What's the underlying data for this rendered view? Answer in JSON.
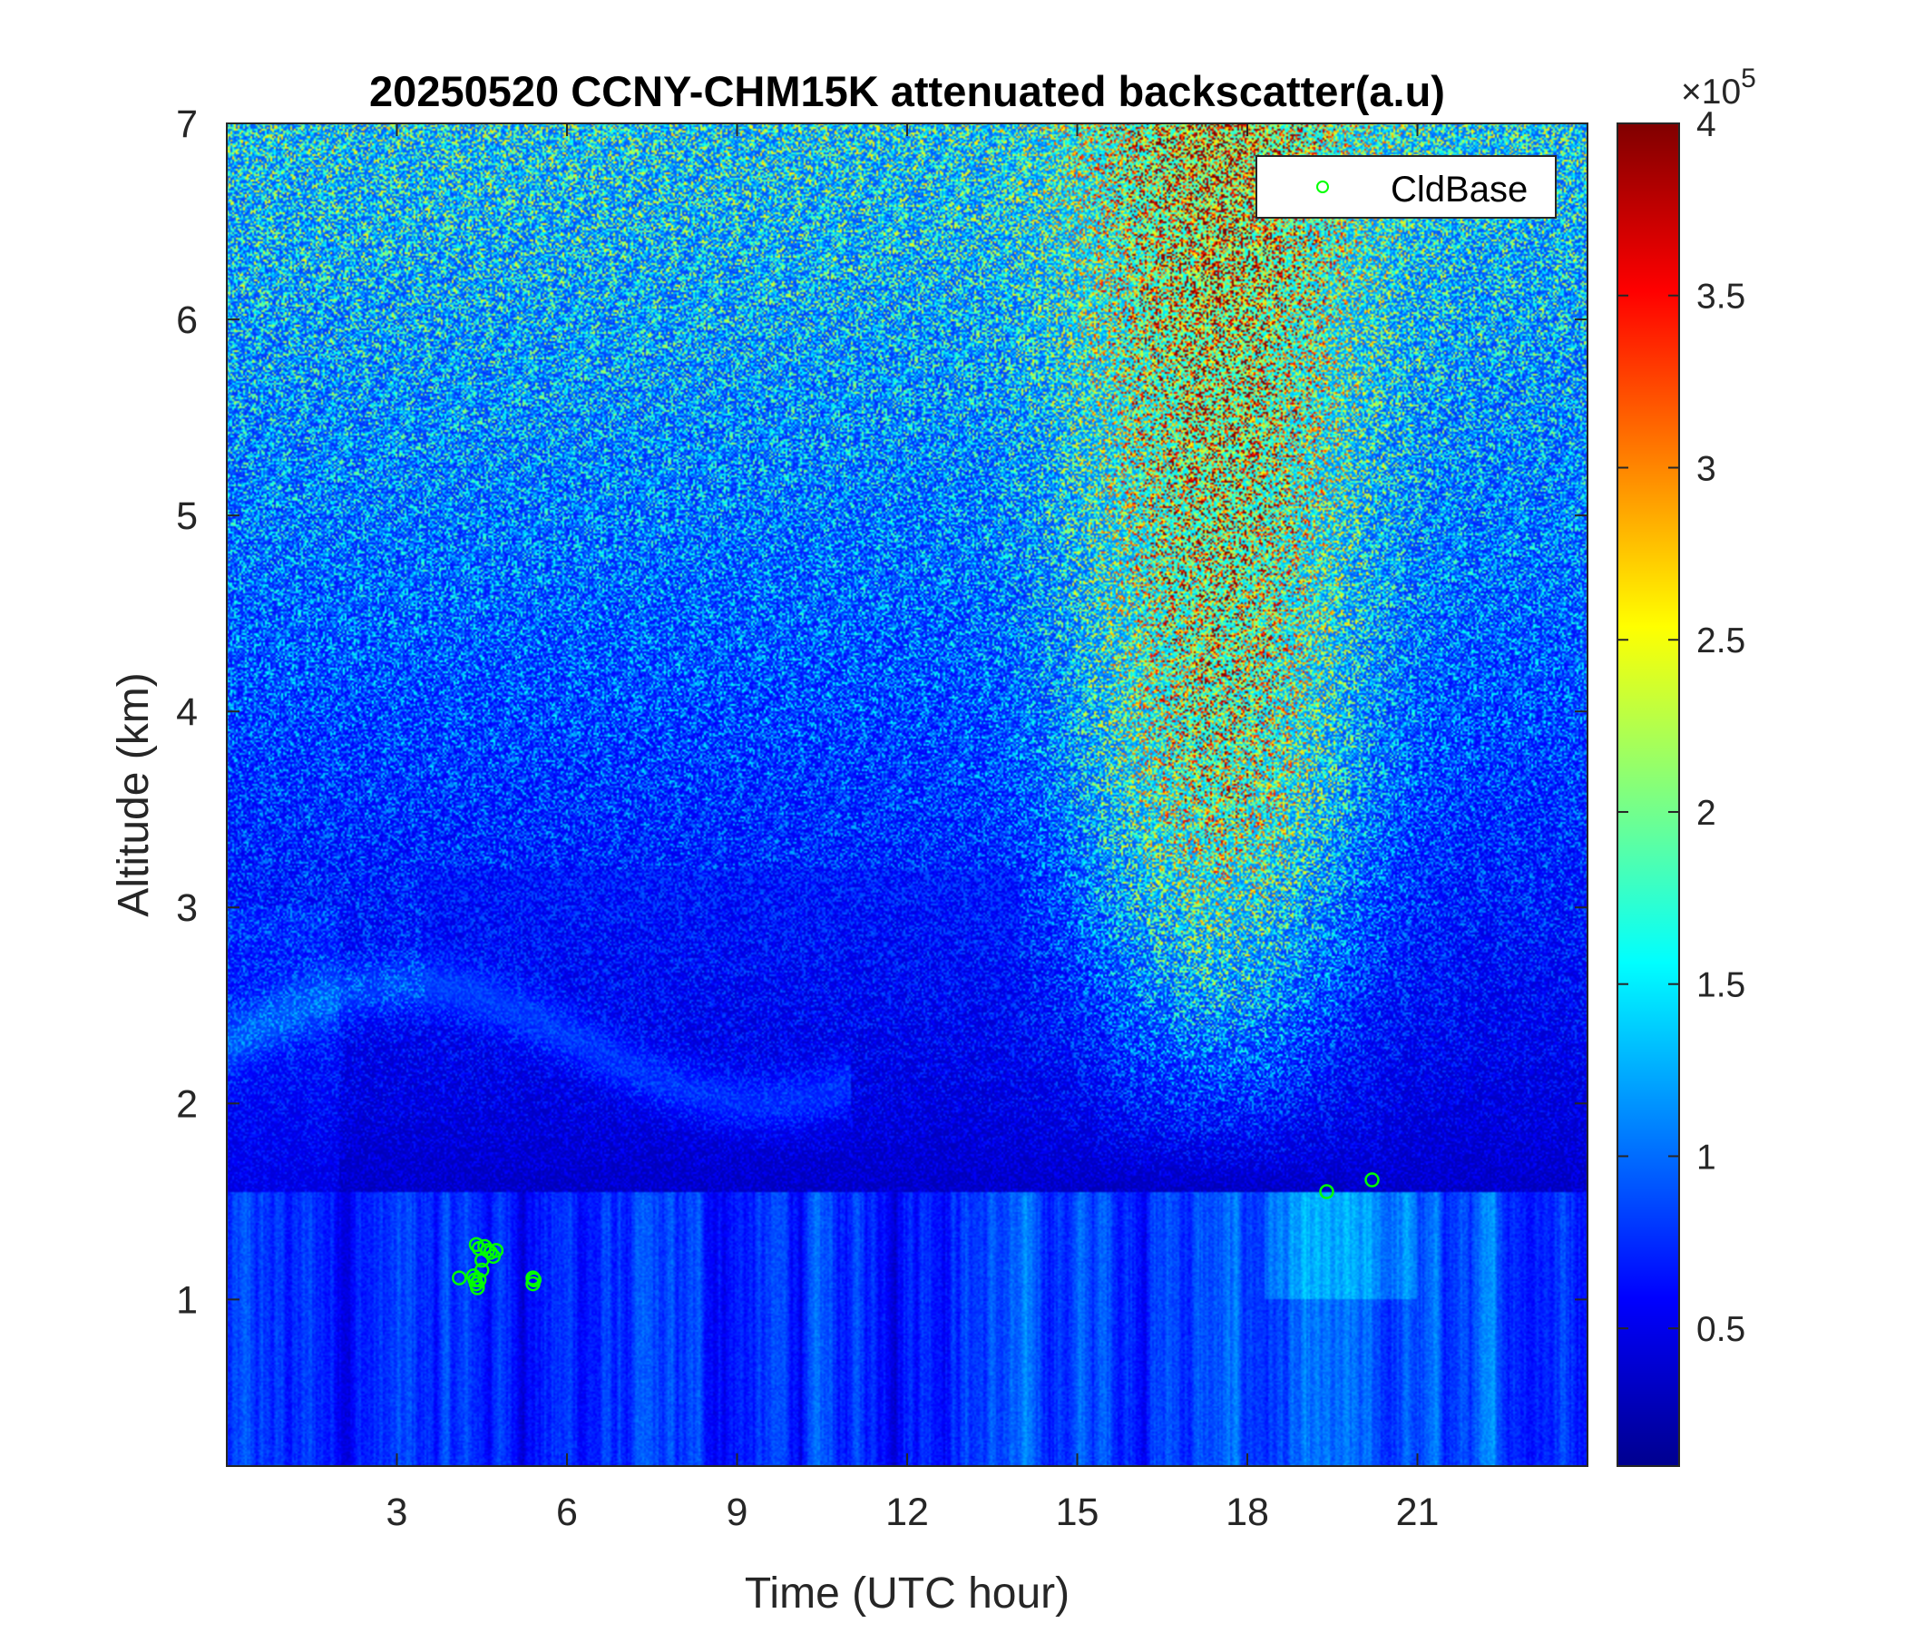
{
  "chart_data": {
    "type": "heatmap",
    "title": "20250520 CCNY-CHM15K attenuated backscatter(a.u)",
    "xlabel": "Time (UTC hour)",
    "ylabel": "Altitude (km)",
    "xlim": [
      0,
      24
    ],
    "ylim": [
      0.15,
      7
    ],
    "xticks": [
      3,
      6,
      9,
      12,
      15,
      18,
      21
    ],
    "yticks": [
      1,
      2,
      3,
      4,
      5,
      6,
      7
    ],
    "colormap": "jet",
    "colorbar": {
      "range": [
        10000,
        400000
      ],
      "exponent_label": "×10",
      "exponent_power": "5",
      "ticks": [
        0.5,
        1,
        1.5,
        2,
        2.5,
        3,
        3.5,
        4
      ]
    },
    "legend": {
      "placement": "top-right",
      "entries": [
        "CldBase"
      ],
      "marker_color": "#00ff00"
    },
    "series": [
      {
        "name": "CldBase",
        "kind": "scatter",
        "x": [
          4.1,
          4.35,
          4.4,
          4.45,
          4.5,
          4.55,
          4.6,
          4.65,
          4.7,
          4.75,
          4.4,
          4.45,
          4.5,
          4.38,
          4.42,
          5.4,
          5.4,
          5.42,
          19.4,
          20.2
        ],
        "y": [
          1.11,
          1.12,
          1.08,
          1.1,
          1.15,
          1.27,
          1.25,
          1.24,
          1.22,
          1.25,
          1.28,
          1.26,
          1.2,
          1.1,
          1.06,
          1.11,
          1.08,
          1.1,
          1.55,
          1.61
        ]
      }
    ]
  }
}
